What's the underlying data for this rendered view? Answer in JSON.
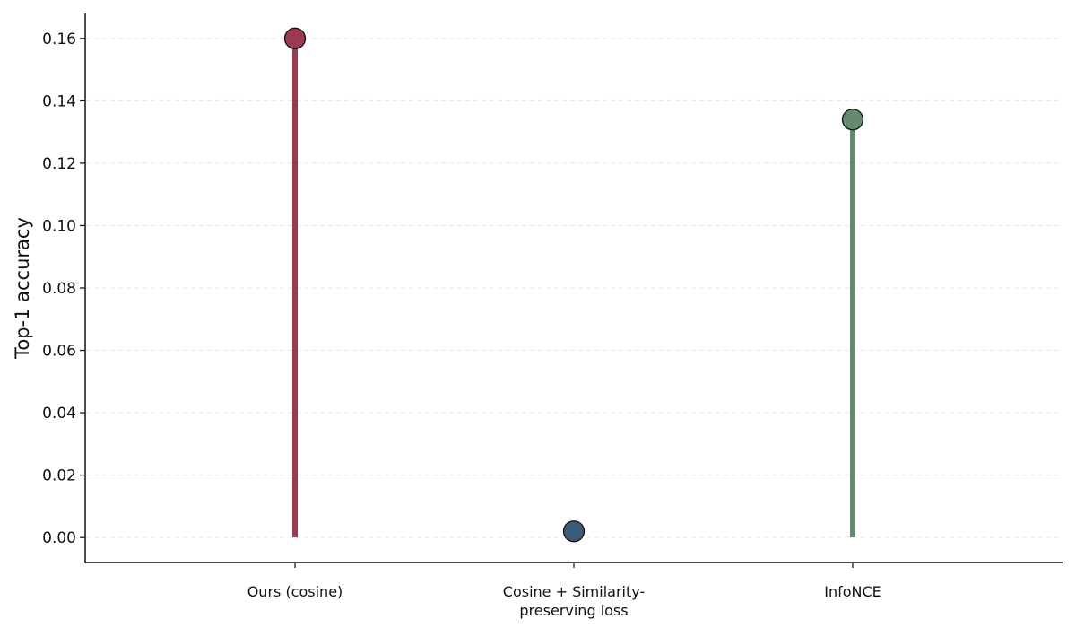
{
  "chart_data": {
    "type": "lollipop",
    "title": "",
    "xlabel": "",
    "ylabel": "Top-1 accuracy",
    "ylim": [
      -0.008,
      0.168
    ],
    "yticks": [
      0.0,
      0.02,
      0.04,
      0.06,
      0.08,
      0.1,
      0.12,
      0.14,
      0.16
    ],
    "ytick_labels": [
      "0.00",
      "0.02",
      "0.04",
      "0.06",
      "0.08",
      "0.10",
      "0.12",
      "0.14",
      "0.16"
    ],
    "grid": "horizontal dashed",
    "categories": [
      {
        "lines": [
          "Ours (cosine)"
        ],
        "value": 0.16,
        "color": "#9b3b4f"
      },
      {
        "lines": [
          "Cosine + Similarity-",
          "preserving loss"
        ],
        "value": 0.002,
        "color": "#3d5a78"
      },
      {
        "lines": [
          "InfoNCE"
        ],
        "value": 0.134,
        "color": "#668a6f"
      }
    ]
  }
}
